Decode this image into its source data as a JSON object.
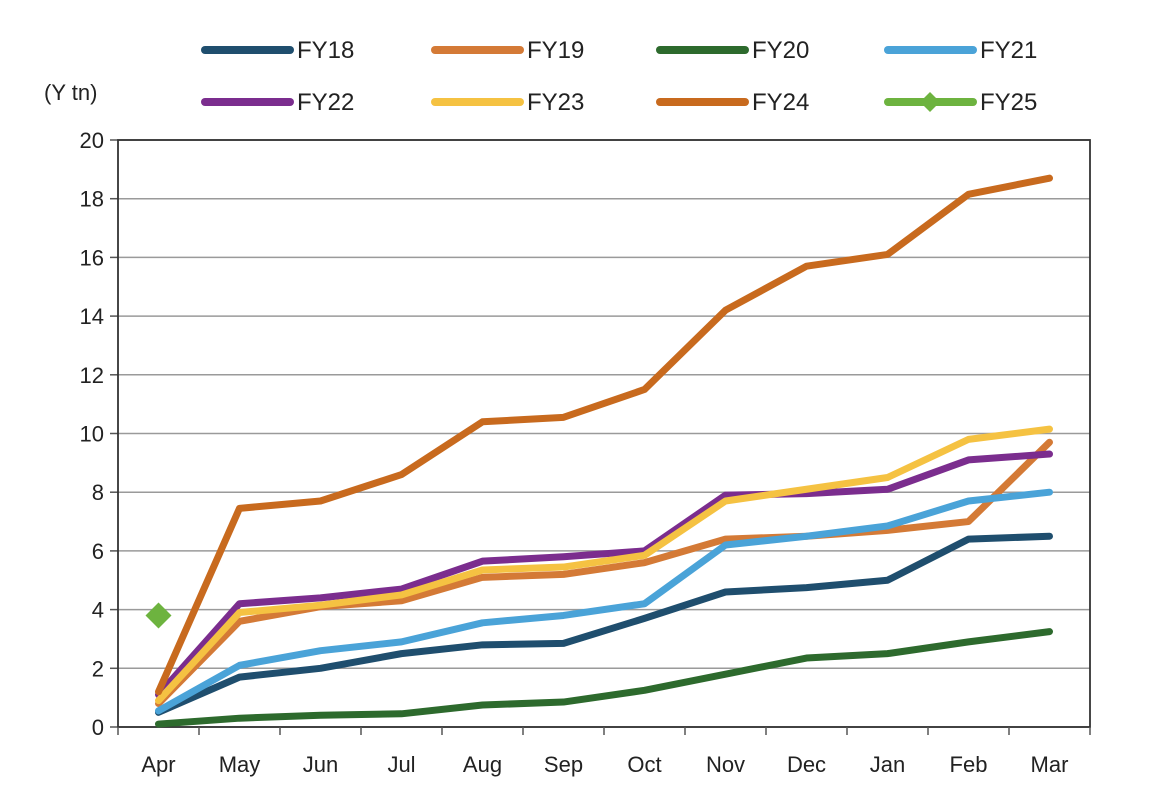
{
  "chart_data": {
    "type": "line",
    "title": "",
    "xlabel": "",
    "ylabel": "(Y tn)",
    "categories": [
      "Apr",
      "May",
      "Jun",
      "Jul",
      "Aug",
      "Sep",
      "Oct",
      "Nov",
      "Dec",
      "Jan",
      "Feb",
      "Mar"
    ],
    "ylim": [
      0,
      20
    ],
    "yticks": [
      "0",
      "2",
      "4",
      "6",
      "8",
      "10",
      "12",
      "14",
      "16",
      "18",
      "20"
    ],
    "grid": true,
    "legend_position": "top",
    "series": [
      {
        "name": "FY18",
        "color": "#1f4e6e",
        "values": [
          0.5,
          1.7,
          2.0,
          2.5,
          2.8,
          2.85,
          3.7,
          4.6,
          4.75,
          5.0,
          6.4,
          6.5
        ]
      },
      {
        "name": "FY19",
        "color": "#d47a36",
        "values": [
          0.8,
          3.6,
          4.1,
          4.3,
          5.1,
          5.2,
          5.6,
          6.4,
          6.5,
          6.7,
          7.0,
          9.7
        ]
      },
      {
        "name": "FY20",
        "color": "#2d6a2d",
        "values": [
          0.1,
          0.3,
          0.4,
          0.45,
          0.75,
          0.85,
          1.25,
          1.8,
          2.35,
          2.5,
          2.9,
          3.25
        ]
      },
      {
        "name": "FY21",
        "color": "#4aa3d8",
        "values": [
          0.55,
          2.1,
          2.6,
          2.9,
          3.55,
          3.8,
          4.2,
          6.2,
          6.5,
          6.85,
          7.7,
          8.0
        ]
      },
      {
        "name": "FY22",
        "color": "#7b2d8e",
        "values": [
          1.1,
          4.2,
          4.4,
          4.7,
          5.65,
          5.8,
          6.0,
          7.9,
          7.95,
          8.1,
          9.1,
          9.3
        ]
      },
      {
        "name": "FY23",
        "color": "#f5c242",
        "values": [
          0.9,
          3.9,
          4.15,
          4.5,
          5.35,
          5.45,
          5.85,
          7.7,
          8.1,
          8.5,
          9.8,
          10.15
        ]
      },
      {
        "name": "FY24",
        "color": "#c86a1e",
        "values": [
          1.2,
          7.45,
          7.7,
          8.6,
          10.4,
          10.55,
          11.5,
          14.2,
          15.7,
          16.1,
          18.15,
          18.7
        ]
      },
      {
        "name": "FY25",
        "color": "#6db33f",
        "marker": "diamond",
        "values": [
          3.8,
          null,
          null,
          null,
          null,
          null,
          null,
          null,
          null,
          null,
          null,
          null
        ]
      }
    ]
  }
}
